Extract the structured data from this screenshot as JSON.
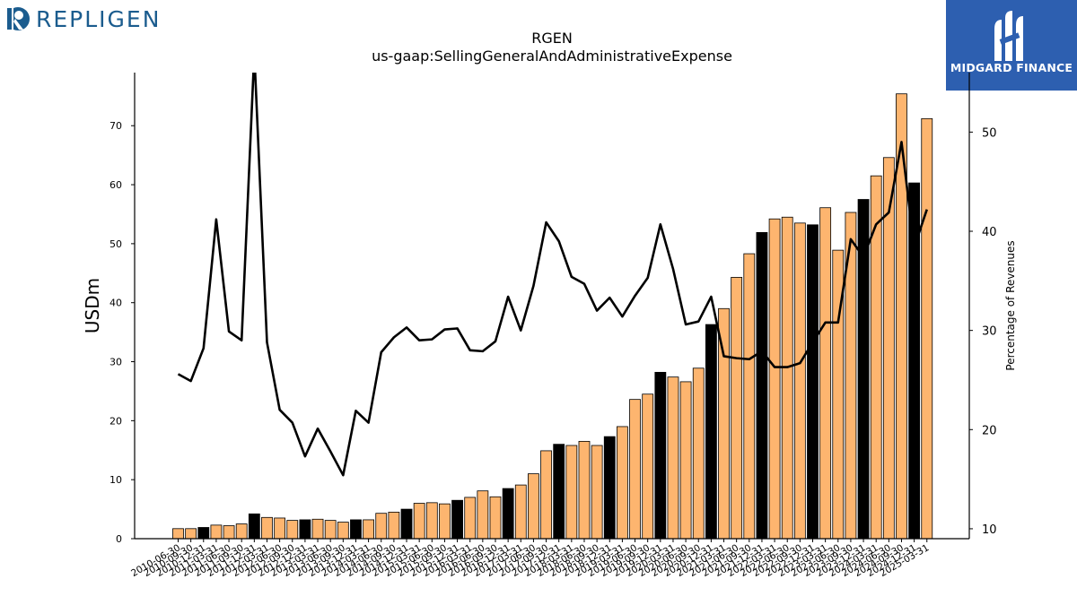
{
  "branding": {
    "left_logo_text": "REPLIGEN",
    "right_logo_text": "MIDGARD FINANCE",
    "left_logo_color": "#1b5c8e",
    "right_logo_bg": "#2d5fb0"
  },
  "chart_data": {
    "type": "bar",
    "title": "RGEN",
    "subtitle": "us-gaap:SellingGeneralAndAdministrativeExpense",
    "ylabel": "USDm",
    "y2label": "Percentage of Revenues",
    "ylim": [
      0,
      79
    ],
    "y2lim": [
      9,
      56
    ],
    "yticks": [
      0,
      10,
      20,
      30,
      40,
      50,
      60,
      70
    ],
    "y2ticks": [
      10,
      20,
      30,
      40,
      50
    ],
    "grid": false,
    "colors": {
      "quarter": "#fdb56f",
      "fiscal_year": "#000000",
      "line": "#000000"
    },
    "categories": [
      "2010-06-30",
      "2010-09-30",
      "2010-12-31",
      "2011-03-31",
      "2011-06-30",
      "2011-09-30",
      "2011-12-31",
      "2012-03-31",
      "2012-06-30",
      "2012-09-30",
      "2012-12-31",
      "2013-03-31",
      "2013-06-30",
      "2013-09-30",
      "2013-12-31",
      "2014-03-31",
      "2014-06-30",
      "2014-09-30",
      "2014-12-31",
      "2015-03-31",
      "2015-06-30",
      "2015-09-30",
      "2015-12-31",
      "2016-03-31",
      "2016-06-30",
      "2016-09-30",
      "2016-12-31",
      "2017-03-31",
      "2017-06-30",
      "2017-09-30",
      "2017-12-31",
      "2018-03-31",
      "2018-06-30",
      "2018-09-30",
      "2018-12-31",
      "2019-03-31",
      "2019-06-30",
      "2019-09-30",
      "2019-12-31",
      "2020-03-31",
      "2020-06-30",
      "2020-09-30",
      "2020-12-31",
      "2021-03-31",
      "2021-06-30",
      "2021-09-30",
      "2021-12-31",
      "2022-03-31",
      "2022-06-30",
      "2022-09-30",
      "2022-12-31",
      "2023-03-31",
      "2023-06-30",
      "2023-09-30",
      "2023-12-31",
      "2024-03-31",
      "2024-06-30",
      "2024-09-30",
      "2024-12-31",
      "2025-03-31"
    ],
    "series": [
      {
        "type": "bar",
        "values": [
          1.7,
          1.7,
          1.9,
          2.3,
          2.2,
          2.5,
          4.2,
          3.6,
          3.5,
          3.1,
          3.2,
          3.3,
          3.1,
          2.8,
          3.2,
          3.2,
          4.3,
          4.5,
          5.0,
          6.0,
          6.1,
          5.9,
          6.5,
          7.0,
          8.1,
          7.1,
          8.5,
          9.1,
          11.0,
          14.9,
          16.0,
          15.8,
          16.5,
          15.8,
          17.3,
          19.0,
          23.6,
          24.5,
          28.2,
          27.4,
          26.6,
          28.9,
          36.3,
          39.0,
          44.3,
          48.3,
          51.9,
          54.2,
          54.5,
          53.5,
          53.2,
          56.1,
          48.9,
          55.3,
          57.5,
          61.5,
          64.6,
          75.4,
          60.3,
          71.2
        ],
        "fiscal_year": [
          false,
          false,
          true,
          false,
          false,
          false,
          true,
          false,
          false,
          false,
          true,
          false,
          false,
          false,
          true,
          false,
          false,
          false,
          true,
          false,
          false,
          false,
          true,
          false,
          false,
          false,
          true,
          false,
          false,
          false,
          true,
          false,
          false,
          false,
          true,
          false,
          false,
          false,
          true,
          false,
          false,
          false,
          true,
          false,
          false,
          false,
          true,
          false,
          false,
          false,
          true,
          false,
          false,
          false,
          true,
          false,
          false,
          false,
          true,
          false
        ]
      },
      {
        "type": "line",
        "axis": "y2",
        "values": [
          25.6,
          24.9,
          28.2,
          41.2,
          29.9,
          29.0,
          58.0,
          28.8,
          22.0,
          20.7,
          17.3,
          20.1,
          17.8,
          15.4,
          21.9,
          20.7,
          27.8,
          29.3,
          30.3,
          29.0,
          29.1,
          30.1,
          30.2,
          28.0,
          27.9,
          28.9,
          33.4,
          30.0,
          34.5,
          40.9,
          39.0,
          35.4,
          34.7,
          32.0,
          33.3,
          31.4,
          33.5,
          35.3,
          40.7,
          36.2,
          30.6,
          30.9,
          33.4,
          27.4,
          27.2,
          27.1,
          27.9,
          26.3,
          26.3,
          26.7,
          28.8,
          30.8,
          30.8,
          39.2,
          37.4,
          40.7,
          41.9,
          49.0,
          38.4,
          42.2
        ]
      }
    ]
  }
}
